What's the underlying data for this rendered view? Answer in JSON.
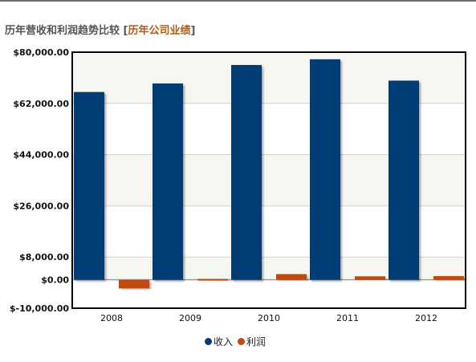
{
  "header": {
    "title": "历年营收和利润趋势比较",
    "bracket_open": "[",
    "link_label": "历年公司业绩",
    "bracket_close": "]"
  },
  "colors": {
    "revenue": "#063d74",
    "profit": "#c24a0a",
    "band": "#f7f7f2",
    "axis": "#000000",
    "grid": "#cfcfcf"
  },
  "chart_data": {
    "type": "bar",
    "title": "",
    "xlabel": "",
    "ylabel": "",
    "categories": [
      "2008",
      "2009",
      "2010",
      "2011",
      "2012"
    ],
    "series": [
      {
        "name": "收入",
        "values": [
          66000,
          69000,
          75500,
          77500,
          70000
        ]
      },
      {
        "name": "利润",
        "values": [
          -3000,
          300,
          2000,
          1200,
          1300
        ]
      }
    ],
    "ylim": [
      -10000,
      80000
    ],
    "yticks": [
      -10000,
      0,
      8000,
      26000,
      44000,
      62000,
      80000
    ],
    "ytick_labels": [
      "$-10,000.00",
      "$0.00",
      "$8,000.00",
      "$26,000.00",
      "$44,000.00",
      "$62,000.00",
      "$80,000.00"
    ],
    "grid": true,
    "legend": "bottom-center"
  }
}
